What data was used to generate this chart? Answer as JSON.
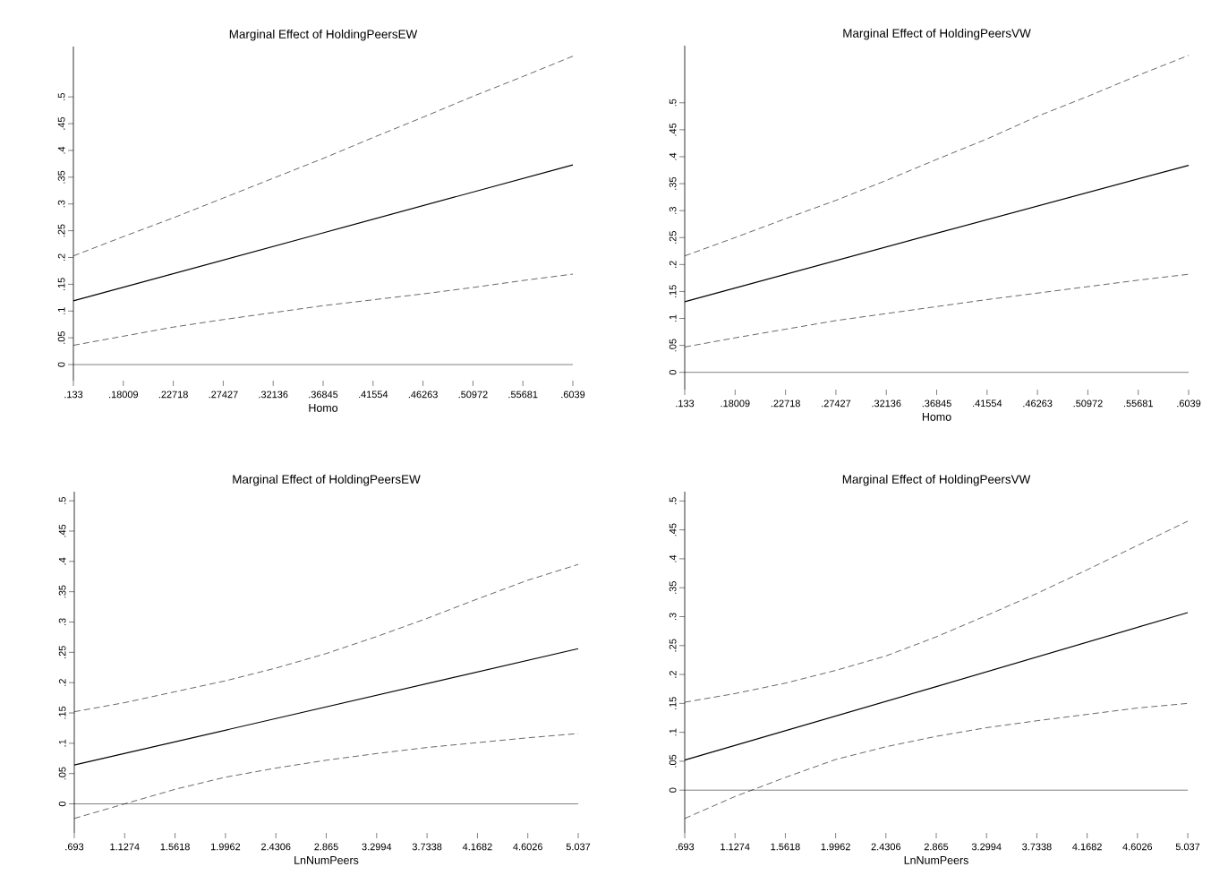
{
  "chart_data": [
    {
      "type": "line",
      "title": "Marginal Effect of HoldingPeersEW",
      "xlabel": "Homo",
      "series": [
        {
          "color": "#000000",
          "line_style": "dashed",
          "x": [
            0.133,
            0.18009,
            0.22718,
            0.27427,
            0.32136,
            0.36845,
            0.41554,
            0.46263,
            0.50972,
            0.55681,
            0.6039
          ],
          "values": [
            0.203,
            0.239,
            0.274,
            0.311,
            0.348,
            0.385,
            0.424,
            0.462,
            0.501,
            0.538,
            0.576
          ]
        },
        {
          "color": "#000000",
          "line_style": "solid",
          "x": [
            0.133,
            0.36845,
            0.6039
          ],
          "values": [
            0.119,
            0.246,
            0.373
          ]
        },
        {
          "color": "#000000",
          "line_style": "dashed",
          "x": [
            0.133,
            0.18009,
            0.22718,
            0.27427,
            0.32136,
            0.36845,
            0.41554,
            0.46263,
            0.50972,
            0.55681,
            0.6039
          ],
          "values": [
            0.036,
            0.053,
            0.07,
            0.084,
            0.097,
            0.11,
            0.121,
            0.132,
            0.144,
            0.157,
            0.169
          ]
        }
      ],
      "xlim": [
        0.133,
        0.6039
      ],
      "ylim": [
        -0.03,
        0.594
      ],
      "xticks": [
        {
          "value": 0.133,
          "label": ".133"
        },
        {
          "value": 0.18009,
          "label": ".18009"
        },
        {
          "value": 0.22718,
          "label": ".22718"
        },
        {
          "value": 0.27427,
          "label": ".27427"
        },
        {
          "value": 0.32136,
          "label": ".32136"
        },
        {
          "value": 0.36845,
          "label": ".36845"
        },
        {
          "value": 0.41554,
          "label": ".41554"
        },
        {
          "value": 0.46263,
          "label": ".46263"
        },
        {
          "value": 0.50972,
          "label": ".50972"
        },
        {
          "value": 0.55681,
          "label": ".55681"
        },
        {
          "value": 0.6039,
          "label": ".6039"
        }
      ],
      "yticks": [
        0,
        {
          "value": 0.05,
          "label": ".05"
        },
        {
          "value": 0.1,
          "label": ".1"
        },
        {
          "value": 0.15,
          "label": ".15"
        },
        {
          "value": 0.2,
          "label": ".2"
        },
        {
          "value": 0.25,
          "label": ".25"
        },
        {
          "value": 0.3,
          "label": ".3"
        },
        {
          "value": 0.35,
          "label": ".35"
        },
        {
          "value": 0.4,
          "label": ".4"
        },
        {
          "value": 0.45,
          "label": ".45"
        },
        {
          "value": 0.5,
          "label": ".5"
        }
      ],
      "ref_lines": [
        {
          "axis": "y",
          "value": 0
        }
      ]
    },
    {
      "type": "line",
      "title": "Marginal Effect of HoldingPeersVW",
      "xlabel": "Homo",
      "series": [
        {
          "color": "#000000",
          "line_style": "dashed",
          "x": [
            0.133,
            0.18009,
            0.22718,
            0.27427,
            0.32136,
            0.36845,
            0.41554,
            0.46263,
            0.50972,
            0.55681,
            0.6039
          ],
          "values": [
            0.216,
            0.25,
            0.285,
            0.319,
            0.356,
            0.395,
            0.433,
            0.475,
            0.512,
            0.551,
            0.588
          ]
        },
        {
          "color": "#000000",
          "line_style": "solid",
          "x": [
            0.133,
            0.36845,
            0.6039
          ],
          "values": [
            0.131,
            0.258,
            0.384
          ]
        },
        {
          "color": "#000000",
          "line_style": "dashed",
          "x": [
            0.133,
            0.18009,
            0.22718,
            0.27427,
            0.32136,
            0.36845,
            0.41554,
            0.46263,
            0.50972,
            0.55681,
            0.6039
          ],
          "values": [
            0.047,
            0.064,
            0.08,
            0.096,
            0.109,
            0.122,
            0.135,
            0.147,
            0.159,
            0.171,
            0.182
          ]
        }
      ],
      "xlim": [
        0.133,
        0.6039
      ],
      "ylim": [
        -0.032,
        0.606
      ],
      "xticks": [
        {
          "value": 0.133,
          "label": ".133"
        },
        {
          "value": 0.18009,
          "label": ".18009"
        },
        {
          "value": 0.22718,
          "label": ".22718"
        },
        {
          "value": 0.27427,
          "label": ".27427"
        },
        {
          "value": 0.32136,
          "label": ".32136"
        },
        {
          "value": 0.36845,
          "label": ".36845"
        },
        {
          "value": 0.41554,
          "label": ".41554"
        },
        {
          "value": 0.46263,
          "label": ".46263"
        },
        {
          "value": 0.50972,
          "label": ".50972"
        },
        {
          "value": 0.55681,
          "label": ".55681"
        },
        {
          "value": 0.6039,
          "label": ".6039"
        }
      ],
      "yticks": [
        0,
        {
          "value": 0.05,
          "label": ".05"
        },
        {
          "value": 0.1,
          "label": ".1"
        },
        {
          "value": 0.15,
          "label": ".15"
        },
        {
          "value": 0.2,
          "label": ".2"
        },
        {
          "value": 0.25,
          "label": ".25"
        },
        {
          "value": 0.3,
          "label": ".3"
        },
        {
          "value": 0.35,
          "label": ".35"
        },
        {
          "value": 0.4,
          "label": ".4"
        },
        {
          "value": 0.45,
          "label": ".45"
        },
        {
          "value": 0.5,
          "label": ".5"
        }
      ],
      "ref_lines": [
        {
          "axis": "y",
          "value": 0
        }
      ]
    },
    {
      "type": "line",
      "title": "Marginal Effect of HoldingPeersEW",
      "xlabel": "LnNumPeers",
      "series": [
        {
          "color": "#000000",
          "line_style": "dashed",
          "x": [
            0.693,
            1.1274,
            1.5618,
            1.9962,
            2.4306,
            2.865,
            3.2994,
            3.7338,
            4.1682,
            4.6026,
            5.037
          ],
          "values": [
            0.152,
            0.167,
            0.185,
            0.203,
            0.224,
            0.248,
            0.276,
            0.306,
            0.338,
            0.369,
            0.395
          ]
        },
        {
          "color": "#000000",
          "line_style": "solid",
          "x": [
            0.693,
            2.865,
            5.037
          ],
          "values": [
            0.064,
            0.16,
            0.256
          ]
        },
        {
          "color": "#000000",
          "line_style": "dashed",
          "x": [
            0.693,
            1.1274,
            1.5618,
            1.9962,
            2.4306,
            2.865,
            3.2994,
            3.7338,
            4.1682,
            4.6026,
            5.037
          ],
          "values": [
            -0.024,
            0.0,
            0.024,
            0.044,
            0.059,
            0.072,
            0.083,
            0.093,
            0.101,
            0.109,
            0.116
          ]
        }
      ],
      "xlim": [
        0.693,
        5.037
      ],
      "ylim": [
        -0.048,
        0.515
      ],
      "xticks": [
        {
          "value": 0.693,
          "label": ".693"
        },
        1.1274,
        1.5618,
        1.9962,
        2.4306,
        2.865,
        3.2994,
        3.7338,
        4.1682,
        4.6026,
        5.037
      ],
      "yticks": [
        0,
        {
          "value": 0.05,
          "label": ".05"
        },
        {
          "value": 0.1,
          "label": ".1"
        },
        {
          "value": 0.15,
          "label": ".15"
        },
        {
          "value": 0.2,
          "label": ".2"
        },
        {
          "value": 0.25,
          "label": ".25"
        },
        {
          "value": 0.3,
          "label": ".3"
        },
        {
          "value": 0.35,
          "label": ".35"
        },
        {
          "value": 0.4,
          "label": ".4"
        },
        {
          "value": 0.45,
          "label": ".45"
        },
        {
          "value": 0.5,
          "label": ".5"
        }
      ],
      "ref_lines": [
        {
          "axis": "y",
          "value": 0
        }
      ]
    },
    {
      "type": "line",
      "title": "Marginal Effect of HoldingPeersVW",
      "xlabel": "LnNumPeers",
      "series": [
        {
          "color": "#000000",
          "line_style": "dashed",
          "x": [
            0.693,
            1.1274,
            1.5618,
            1.9962,
            2.4306,
            2.865,
            3.2994,
            3.7338,
            4.1682,
            4.6026,
            5.037
          ],
          "values": [
            0.152,
            0.167,
            0.185,
            0.207,
            0.232,
            0.265,
            0.302,
            0.34,
            0.381,
            0.423,
            0.465
          ]
        },
        {
          "color": "#000000",
          "line_style": "solid",
          "x": [
            0.693,
            2.865,
            5.037
          ],
          "values": [
            0.052,
            0.179,
            0.307
          ]
        },
        {
          "color": "#000000",
          "line_style": "dashed",
          "x": [
            0.693,
            1.1274,
            1.5618,
            1.9962,
            2.4306,
            2.865,
            3.2994,
            3.7338,
            4.1682,
            4.6026,
            5.037
          ],
          "values": [
            -0.049,
            -0.011,
            0.022,
            0.053,
            0.075,
            0.093,
            0.108,
            0.12,
            0.131,
            0.142,
            0.15
          ]
        }
      ],
      "xlim": [
        0.693,
        5.037
      ],
      "ylim": [
        -0.074,
        0.516
      ],
      "xticks": [
        {
          "value": 0.693,
          "label": ".693"
        },
        1.1274,
        1.5618,
        1.9962,
        2.4306,
        2.865,
        3.2994,
        3.7338,
        4.1682,
        4.6026,
        5.037
      ],
      "yticks": [
        0,
        {
          "value": 0.05,
          "label": ".05"
        },
        {
          "value": 0.1,
          "label": ".1"
        },
        {
          "value": 0.15,
          "label": ".15"
        },
        {
          "value": 0.2,
          "label": ".2"
        },
        {
          "value": 0.25,
          "label": ".25"
        },
        {
          "value": 0.3,
          "label": ".3"
        },
        {
          "value": 0.35,
          "label": ".35"
        },
        {
          "value": 0.4,
          "label": ".4"
        },
        {
          "value": 0.45,
          "label": ".45"
        },
        {
          "value": 0.5,
          "label": ".5"
        }
      ],
      "ref_lines": [
        {
          "axis": "y",
          "value": 0
        }
      ]
    }
  ]
}
